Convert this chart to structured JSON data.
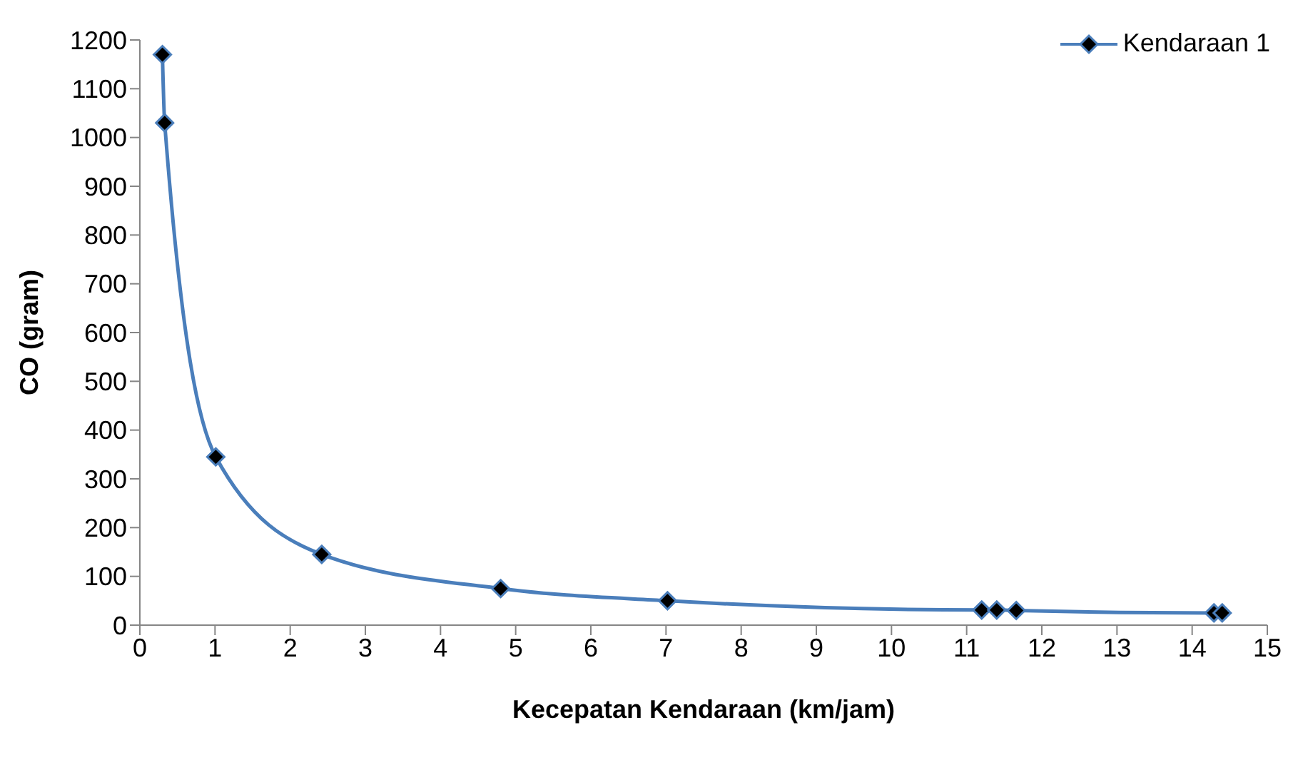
{
  "chart_data": {
    "type": "line",
    "xlabel": "Kecepatan Kendaraan (km/jam)",
    "ylabel": "CO (gram)",
    "x": [
      0.3,
      0.33,
      1.01,
      2.42,
      4.8,
      7.02,
      11.2,
      11.4,
      11.66,
      14.29,
      14.4
    ],
    "series": [
      {
        "name": "Kendaraan 1",
        "color": "#4a7ebb",
        "values": [
          1170,
          1030,
          345,
          145,
          75,
          50,
          31,
          31,
          30,
          25,
          25
        ]
      }
    ],
    "xlim": [
      0,
      15
    ],
    "xticks": [
      0,
      1,
      2,
      3,
      4,
      5,
      6,
      7,
      8,
      9,
      10,
      11,
      12,
      13,
      14,
      15
    ],
    "ylim": [
      0,
      1200
    ],
    "yticks": [
      0,
      100,
      200,
      300,
      400,
      500,
      600,
      700,
      800,
      900,
      1000,
      1100,
      1200
    ],
    "grid": false,
    "legend": "top right",
    "marker": "diamond",
    "line_style": "solid"
  }
}
